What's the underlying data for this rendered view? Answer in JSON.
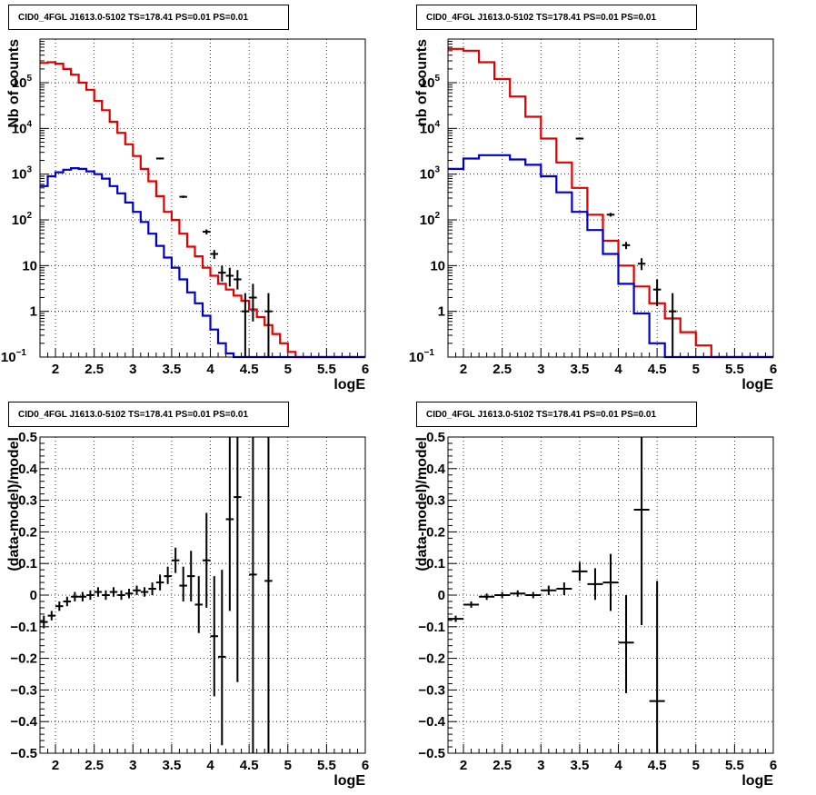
{
  "chart_data": [
    {
      "type": "line",
      "title": "CID0_4FGL J1613.0-5102 TS=178.41 PS=0.01 PS=0.01",
      "xlabel": "logE",
      "ylabel": "Nb of counts",
      "xlim": [
        1.8,
        6.0
      ],
      "ylim": [
        0.1,
        900000
      ],
      "yscale": "log",
      "grid": true,
      "xticks": [
        "2",
        "2.5",
        "3",
        "3.5",
        "4",
        "4.5",
        "5",
        "5.5",
        "6"
      ],
      "yticks": [
        {
          "v": 0.1,
          "label": "10",
          "exp": "−1"
        },
        {
          "v": 1,
          "label": "1"
        },
        {
          "v": 10,
          "label": "10"
        },
        {
          "v": 100,
          "label": "10",
          "exp": "2"
        },
        {
          "v": 1000,
          "label": "10",
          "exp": "3"
        },
        {
          "v": 10000,
          "label": "10",
          "exp": "4"
        },
        {
          "v": 100000,
          "label": "10",
          "exp": "5"
        }
      ],
      "bin_edges": [
        1.8,
        1.9,
        2.0,
        2.1,
        2.2,
        2.3,
        2.4,
        2.5,
        2.6,
        2.7,
        2.8,
        2.9,
        3.0,
        3.1,
        3.2,
        3.3,
        3.4,
        3.5,
        3.6,
        3.7,
        3.8,
        3.9,
        4.0,
        4.1,
        4.2,
        4.3,
        4.4,
        4.5,
        4.6,
        4.7,
        4.8,
        4.9,
        5.0,
        5.1,
        5.2,
        5.3,
        5.4,
        5.5,
        5.6,
        5.7,
        5.8,
        5.9,
        6.0
      ],
      "series": [
        {
          "name": "",
          "color": "#e00000",
          "style": "step",
          "values": [
            270000,
            280000,
            260000,
            200000,
            150000,
            100000,
            70000,
            40000,
            25000,
            14000,
            8000,
            4500,
            2500,
            1300,
            700,
            330,
            150,
            100,
            50,
            26,
            16,
            9,
            6,
            4,
            3,
            2.2,
            1.7,
            1.1,
            0.75,
            0.5,
            0.32,
            0.2,
            0.13,
            0.1,
            0.1,
            0.1,
            0.1,
            0.1,
            0.1,
            0.1,
            0.1,
            0.1
          ]
        },
        {
          "name": "",
          "color": "#0000cc",
          "style": "step",
          "values": [
            550,
            900,
            1100,
            1250,
            1350,
            1300,
            1150,
            1000,
            800,
            550,
            380,
            240,
            150,
            90,
            50,
            27,
            15,
            9,
            5,
            2.6,
            1.5,
            0.8,
            0.4,
            0.2,
            0.12,
            0.1,
            0.1,
            0.1,
            0.1,
            0.1,
            0.1,
            0.1,
            0.1,
            0.1,
            0.1,
            0.1,
            0.1,
            0.1,
            0.1,
            0.1,
            0.1,
            0.1
          ]
        },
        {
          "name": "",
          "color": "#000000",
          "style": "errorbars",
          "points": [
            {
              "x": 3.35,
              "y": 2200,
              "lo": 2100,
              "hi": 2300
            },
            {
              "x": 3.65,
              "y": 320,
              "lo": 300,
              "hi": 340
            },
            {
              "x": 3.95,
              "y": 55,
              "lo": 48,
              "hi": 62
            },
            {
              "x": 4.05,
              "y": 18,
              "lo": 14,
              "hi": 22
            },
            {
              "x": 4.15,
              "y": 7,
              "lo": 4.5,
              "hi": 10
            },
            {
              "x": 4.25,
              "y": 6,
              "lo": 3.5,
              "hi": 9
            },
            {
              "x": 4.35,
              "y": 5,
              "lo": 3,
              "hi": 8
            },
            {
              "x": 4.45,
              "y": 1,
              "lo": 0.1,
              "hi": 2.5
            },
            {
              "x": 4.55,
              "y": 2,
              "lo": 0.6,
              "hi": 4
            },
            {
              "x": 4.75,
              "y": 1,
              "lo": 0.1,
              "hi": 2.5
            }
          ]
        }
      ]
    },
    {
      "type": "line",
      "title": "CID0_4FGL J1613.0-5102 TS=178.41 PS=0.01 PS=0.01",
      "xlabel": "logE",
      "ylabel": "nb of counts",
      "xlim": [
        1.8,
        6.0
      ],
      "ylim": [
        0.1,
        900000
      ],
      "yscale": "log",
      "grid": true,
      "xticks": [
        "2",
        "2.5",
        "3",
        "3.5",
        "4",
        "4.5",
        "5",
        "5.5",
        "6"
      ],
      "yticks": [
        {
          "v": 0.1,
          "label": "10",
          "exp": "−1"
        },
        {
          "v": 1,
          "label": "1"
        },
        {
          "v": 10,
          "label": "10"
        },
        {
          "v": 100,
          "label": "10",
          "exp": "2"
        },
        {
          "v": 1000,
          "label": "10",
          "exp": "3"
        },
        {
          "v": 10000,
          "label": "10",
          "exp": "4"
        },
        {
          "v": 100000,
          "label": "10",
          "exp": "5"
        }
      ],
      "bin_edges": [
        1.8,
        2.0,
        2.2,
        2.4,
        2.6,
        2.8,
        3.0,
        3.2,
        3.4,
        3.6,
        3.8,
        4.0,
        4.2,
        4.4,
        4.6,
        4.8,
        5.0,
        5.2,
        5.4,
        5.6,
        5.8,
        6.0
      ],
      "series": [
        {
          "name": "",
          "color": "#e00000",
          "style": "step",
          "values": [
            550000,
            500000,
            280000,
            120000,
            50000,
            18000,
            6000,
            1800,
            500,
            130,
            35,
            10,
            3.5,
            1.5,
            0.7,
            0.35,
            0.18,
            0.1,
            0.1,
            0.1,
            0.1
          ]
        },
        {
          "name": "",
          "color": "#0000cc",
          "style": "step",
          "values": [
            1300,
            2200,
            2600,
            2600,
            2100,
            1600,
            900,
            400,
            150,
            60,
            18,
            4,
            0.9,
            0.2,
            0.1,
            0.1,
            0.1,
            0.1,
            0.1,
            0.1,
            0.1
          ]
        },
        {
          "name": "",
          "color": "#000000",
          "style": "errorbars",
          "points": [
            {
              "x": 3.5,
              "y": 6000,
              "lo": 5800,
              "hi": 6200
            },
            {
              "x": 3.9,
              "y": 130,
              "lo": 118,
              "hi": 142
            },
            {
              "x": 4.1,
              "y": 28,
              "lo": 23,
              "hi": 33
            },
            {
              "x": 4.3,
              "y": 11,
              "lo": 8,
              "hi": 14.5
            },
            {
              "x": 4.5,
              "y": 3,
              "lo": 1.3,
              "hi": 5
            },
            {
              "x": 4.7,
              "y": 1,
              "lo": 0.1,
              "hi": 2.5
            }
          ]
        }
      ]
    },
    {
      "type": "scatter",
      "title": "CID0_4FGL J1613.0-5102 TS=178.41 PS=0.01 PS=0.01",
      "xlabel": "logE",
      "ylabel": "(data-model)/model",
      "xlim": [
        1.8,
        6.0
      ],
      "ylim": [
        -0.5,
        0.5
      ],
      "yscale": "linear",
      "grid": true,
      "xticks": [
        "2",
        "2.5",
        "3",
        "3.5",
        "4",
        "4.5",
        "5",
        "5.5",
        "6"
      ],
      "yticks": [
        {
          "v": -0.5,
          "label": "−0.5"
        },
        {
          "v": -0.4,
          "label": "−0.4"
        },
        {
          "v": -0.3,
          "label": "−0.3"
        },
        {
          "v": -0.2,
          "label": "−0.2"
        },
        {
          "v": -0.1,
          "label": "−0.1"
        },
        {
          "v": 0,
          "label": "0"
        },
        {
          "v": 0.1,
          "label": "0.1"
        },
        {
          "v": 0.2,
          "label": "0.2"
        },
        {
          "v": 0.3,
          "label": "0.3"
        },
        {
          "v": 0.4,
          "label": "0.4"
        },
        {
          "v": 0.5,
          "label": "0.5"
        }
      ],
      "series": [
        {
          "name": "",
          "color": "#000000",
          "style": "errorbars",
          "halfwidth": 0.05,
          "points": [
            {
              "x": 1.85,
              "y": -0.085,
              "lo": -0.105,
              "hi": -0.065
            },
            {
              "x": 1.95,
              "y": -0.065,
              "lo": -0.08,
              "hi": -0.05
            },
            {
              "x": 2.05,
              "y": -0.035,
              "lo": -0.05,
              "hi": -0.02
            },
            {
              "x": 2.15,
              "y": -0.02,
              "lo": -0.035,
              "hi": -0.005
            },
            {
              "x": 2.25,
              "y": -0.005,
              "lo": -0.02,
              "hi": 0.01
            },
            {
              "x": 2.35,
              "y": -0.005,
              "lo": -0.02,
              "hi": 0.01
            },
            {
              "x": 2.45,
              "y": 0.0,
              "lo": -0.015,
              "hi": 0.015
            },
            {
              "x": 2.55,
              "y": 0.01,
              "lo": -0.005,
              "hi": 0.025
            },
            {
              "x": 2.65,
              "y": 0.0,
              "lo": -0.015,
              "hi": 0.015
            },
            {
              "x": 2.75,
              "y": 0.01,
              "lo": -0.005,
              "hi": 0.025
            },
            {
              "x": 2.85,
              "y": 0.0,
              "lo": -0.015,
              "hi": 0.015
            },
            {
              "x": 2.95,
              "y": 0.005,
              "lo": -0.01,
              "hi": 0.02
            },
            {
              "x": 3.05,
              "y": 0.015,
              "lo": 0.0,
              "hi": 0.03
            },
            {
              "x": 3.15,
              "y": 0.01,
              "lo": -0.005,
              "hi": 0.025
            },
            {
              "x": 3.25,
              "y": 0.02,
              "lo": 0.0,
              "hi": 0.04
            },
            {
              "x": 3.35,
              "y": 0.04,
              "lo": 0.015,
              "hi": 0.065
            },
            {
              "x": 3.45,
              "y": 0.06,
              "lo": 0.035,
              "hi": 0.09
            },
            {
              "x": 3.55,
              "y": 0.11,
              "lo": 0.07,
              "hi": 0.15
            },
            {
              "x": 3.65,
              "y": 0.03,
              "lo": -0.02,
              "hi": 0.09
            },
            {
              "x": 3.75,
              "y": 0.06,
              "lo": -0.02,
              "hi": 0.14
            },
            {
              "x": 3.85,
              "y": -0.03,
              "lo": -0.12,
              "hi": 0.06
            },
            {
              "x": 3.95,
              "y": 0.11,
              "lo": -0.04,
              "hi": 0.26
            },
            {
              "x": 4.05,
              "y": -0.13,
              "lo": -0.32,
              "hi": 0.06
            },
            {
              "x": 4.15,
              "y": -0.195,
              "lo": -0.475,
              "hi": 0.08
            },
            {
              "x": 4.25,
              "y": 0.24,
              "lo": -0.05,
              "hi": 0.5
            },
            {
              "x": 4.35,
              "y": 0.31,
              "lo": -0.275,
              "hi": 0.5
            },
            {
              "x": 4.55,
              "y": 0.065,
              "lo": -0.5,
              "hi": 0.5
            },
            {
              "x": 4.75,
              "y": 0.045,
              "lo": -0.5,
              "hi": 0.5
            }
          ]
        }
      ]
    },
    {
      "type": "scatter",
      "title": "CID0_4FGL J1613.0-5102 TS=178.41 PS=0.01 PS=0.01",
      "xlabel": "logE",
      "ylabel": "(data-model)/model",
      "xlim": [
        1.8,
        6.0
      ],
      "ylim": [
        -0.5,
        0.5
      ],
      "yscale": "linear",
      "grid": true,
      "xticks": [
        "2",
        "2.5",
        "3",
        "3.5",
        "4",
        "4.5",
        "5",
        "5.5",
        "6"
      ],
      "yticks": [
        {
          "v": -0.5,
          "label": "−0.5"
        },
        {
          "v": -0.4,
          "label": "−0.4"
        },
        {
          "v": -0.3,
          "label": "−0.3"
        },
        {
          "v": -0.2,
          "label": "−0.2"
        },
        {
          "v": -0.1,
          "label": "−0.1"
        },
        {
          "v": 0,
          "label": "0"
        },
        {
          "v": 0.1,
          "label": "0.1"
        },
        {
          "v": 0.2,
          "label": "0.2"
        },
        {
          "v": 0.3,
          "label": "0.3"
        },
        {
          "v": 0.4,
          "label": "0.4"
        },
        {
          "v": 0.5,
          "label": "0.5"
        }
      ],
      "series": [
        {
          "name": "",
          "color": "#000000",
          "style": "errorbars",
          "halfwidth": 0.1,
          "points": [
            {
              "x": 1.9,
              "y": -0.075,
              "lo": -0.085,
              "hi": -0.065
            },
            {
              "x": 2.1,
              "y": -0.03,
              "lo": -0.04,
              "hi": -0.02
            },
            {
              "x": 2.3,
              "y": -0.005,
              "lo": -0.015,
              "hi": 0.005
            },
            {
              "x": 2.5,
              "y": 0.0,
              "lo": -0.01,
              "hi": 0.01
            },
            {
              "x": 2.7,
              "y": 0.005,
              "lo": -0.005,
              "hi": 0.015
            },
            {
              "x": 2.9,
              "y": 0.0,
              "lo": -0.01,
              "hi": 0.01
            },
            {
              "x": 3.1,
              "y": 0.015,
              "lo": 0.0,
              "hi": 0.03
            },
            {
              "x": 3.3,
              "y": 0.02,
              "lo": 0.0,
              "hi": 0.04
            },
            {
              "x": 3.5,
              "y": 0.075,
              "lo": 0.045,
              "hi": 0.105
            },
            {
              "x": 3.7,
              "y": 0.035,
              "lo": -0.015,
              "hi": 0.085
            },
            {
              "x": 3.9,
              "y": 0.04,
              "lo": -0.05,
              "hi": 0.13
            },
            {
              "x": 4.1,
              "y": -0.15,
              "lo": -0.31,
              "hi": 0.0
            },
            {
              "x": 4.3,
              "y": 0.27,
              "lo": -0.095,
              "hi": 0.5
            },
            {
              "x": 4.5,
              "y": -0.335,
              "lo": -0.5,
              "hi": 0.045
            }
          ]
        }
      ]
    }
  ]
}
